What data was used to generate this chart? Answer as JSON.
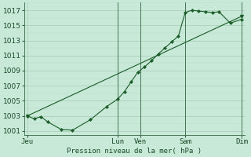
{
  "xlabel": "Pression niveau de la mer( hPa )",
  "bg_color": "#c8e8d8",
  "grid_color_major": "#a8ccb8",
  "grid_color_minor": "#b8d8c8",
  "line_color": "#1a5c28",
  "ylim": [
    1000.5,
    1018.0
  ],
  "yticks": [
    1001,
    1003,
    1005,
    1007,
    1009,
    1011,
    1013,
    1015,
    1017
  ],
  "day_labels": [
    "Jeu",
    "Lun",
    "Ven",
    "Sam",
    "Dim"
  ],
  "day_positions": [
    0,
    4.0,
    5.0,
    7.0,
    9.5
  ],
  "xlim": [
    -0.15,
    9.65
  ],
  "vline_positions": [
    4.0,
    5.0,
    7.0,
    9.5
  ],
  "series1_x": [
    0,
    0.3,
    0.6,
    0.9,
    1.5,
    2.0,
    2.8,
    3.5,
    4.0,
    4.3,
    4.6,
    4.9,
    5.2,
    5.5,
    5.8,
    6.1,
    6.4,
    6.7,
    7.0,
    7.3,
    7.6,
    7.9,
    8.2,
    8.5,
    9.0,
    9.5
  ],
  "series1_y": [
    1003.0,
    1002.6,
    1002.9,
    1002.2,
    1001.2,
    1001.1,
    1002.5,
    1004.2,
    1005.2,
    1006.2,
    1007.5,
    1008.8,
    1009.5,
    1010.3,
    1011.2,
    1012.0,
    1012.8,
    1013.6,
    1016.7,
    1017.0,
    1016.9,
    1016.8,
    1016.7,
    1016.8,
    1015.3,
    1015.8
  ],
  "series2_x": [
    0,
    9.5
  ],
  "series2_y": [
    1003.0,
    1016.2
  ],
  "font_size": 6.5
}
